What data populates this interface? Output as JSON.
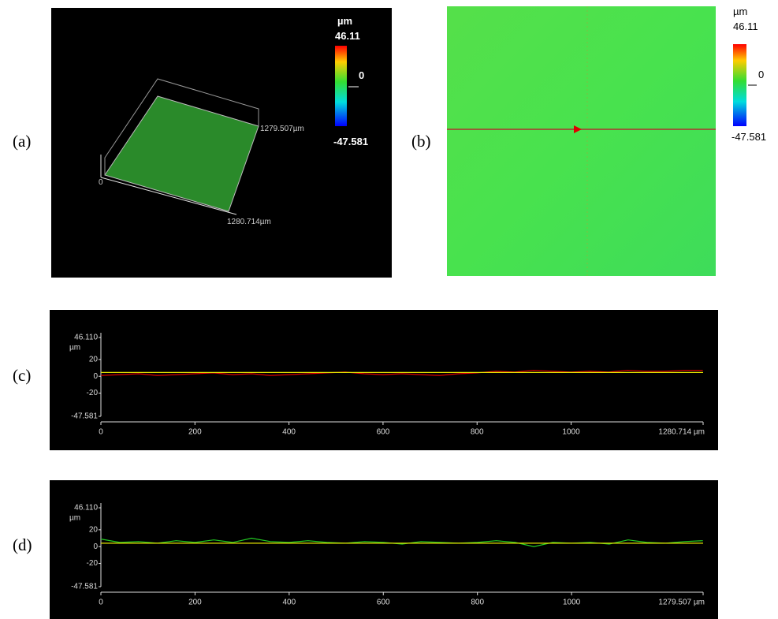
{
  "panel_labels": [
    "(a)",
    "(b)",
    "(c)",
    "(d)"
  ],
  "surface_3d": {
    "unit": "µm",
    "scale_max": "46.11",
    "scale_mid": "0",
    "scale_min": "-47.581",
    "origin": "0",
    "y_extent": "1279.507µm",
    "x_extent": "1280.714µm"
  },
  "height_map": {
    "unit": "µm",
    "scale_max": "46.11",
    "scale_mid": "0",
    "scale_min": "-47.581"
  },
  "chart_data": [
    {
      "type": "line",
      "y_unit": "µm",
      "xlim": [
        0,
        1280.714
      ],
      "ylim": [
        -47.581,
        46.11
      ],
      "xticks": [
        0,
        200,
        400,
        600,
        800,
        1000,
        {
          "value": 1280.714,
          "label": "1280.714 µm"
        }
      ],
      "yticks": [
        {
          "value": 46.11,
          "label": "46.110"
        },
        20,
        0,
        -20,
        -47.581
      ],
      "series": [
        {
          "color": "#e00000",
          "x": [
            0,
            40,
            80,
            120,
            160,
            200,
            240,
            280,
            320,
            360,
            400,
            440,
            480,
            520,
            560,
            600,
            640,
            680,
            720,
            760,
            800,
            840,
            880,
            920,
            960,
            1000,
            1040,
            1080,
            1120,
            1160,
            1200,
            1240,
            1280
          ],
          "values": [
            1,
            2,
            3,
            1,
            2,
            3,
            4,
            2,
            3,
            1,
            2,
            3,
            4,
            5,
            3,
            2,
            3,
            2,
            1,
            3,
            4,
            6,
            5,
            7,
            6,
            5,
            6,
            5,
            7,
            6,
            6,
            7,
            7
          ]
        },
        {
          "color": "#e8e800",
          "x": [
            0,
            1280.714
          ],
          "values": [
            4.5,
            4.5
          ]
        }
      ]
    },
    {
      "type": "line",
      "y_unit": "µm",
      "xlim": [
        0,
        1279.507
      ],
      "ylim": [
        -47.581,
        46.11
      ],
      "xticks": [
        0,
        200,
        400,
        600,
        800,
        1000,
        {
          "value": 1279.507,
          "label": "1279.507 µm"
        }
      ],
      "yticks": [
        {
          "value": 46.11,
          "label": "46.110"
        },
        20,
        0,
        -20,
        -47.581
      ],
      "series": [
        {
          "color": "#22cc22",
          "x": [
            0,
            40,
            80,
            120,
            160,
            200,
            240,
            280,
            320,
            360,
            400,
            440,
            480,
            520,
            560,
            600,
            640,
            680,
            720,
            760,
            800,
            840,
            880,
            920,
            960,
            1000,
            1040,
            1080,
            1120,
            1160,
            1200,
            1240,
            1279
          ],
          "values": [
            9,
            5,
            6,
            4,
            7,
            5,
            8,
            5,
            10,
            6,
            5,
            7,
            5,
            4,
            6,
            5,
            3,
            6,
            5,
            4,
            5,
            7,
            5,
            0,
            5,
            4,
            5,
            3,
            8,
            5,
            4,
            6,
            7
          ]
        },
        {
          "color": "#e8e800",
          "x": [
            0,
            1279.507
          ],
          "values": [
            4,
            4
          ]
        }
      ]
    }
  ]
}
